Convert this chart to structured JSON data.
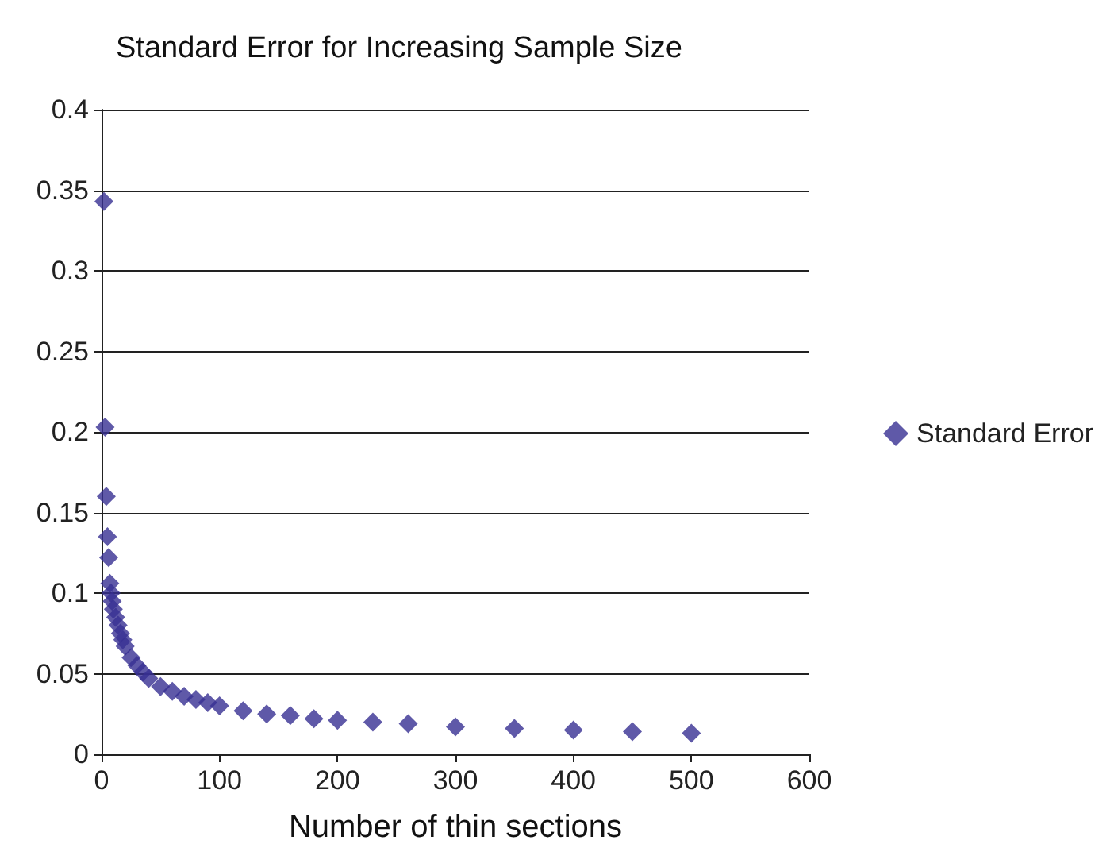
{
  "chart_data": {
    "type": "scatter",
    "title": "Standard Error for Increasing Sample Size",
    "xlabel": "Number of thin sections",
    "series": [
      {
        "name": "Standard Error",
        "color": "#372f92",
        "x": [
          2,
          3,
          4,
          5,
          6,
          7,
          8,
          9,
          10,
          12,
          14,
          16,
          18,
          20,
          25,
          30,
          35,
          40,
          50,
          60,
          70,
          80,
          90,
          100,
          120,
          140,
          160,
          180,
          200,
          230,
          260,
          300,
          350,
          400,
          450,
          500
        ],
        "values": [
          0.343,
          0.203,
          0.16,
          0.135,
          0.122,
          0.106,
          0.1,
          0.095,
          0.09,
          0.085,
          0.08,
          0.075,
          0.071,
          0.067,
          0.06,
          0.055,
          0.051,
          0.047,
          0.042,
          0.039,
          0.036,
          0.034,
          0.032,
          0.03,
          0.027,
          0.025,
          0.024,
          0.022,
          0.021,
          0.02,
          0.019,
          0.017,
          0.016,
          0.015,
          0.014,
          0.013
        ]
      }
    ],
    "xlim": [
      0,
      600
    ],
    "xticks": [
      0,
      100,
      200,
      300,
      400,
      500,
      600
    ],
    "ylim": [
      0,
      0.4
    ],
    "yticks": [
      0,
      0.05,
      0.1,
      0.15,
      0.2,
      0.25,
      0.3,
      0.35,
      0.4
    ],
    "grid": "y",
    "legend": "right",
    "marker": "diamond"
  }
}
